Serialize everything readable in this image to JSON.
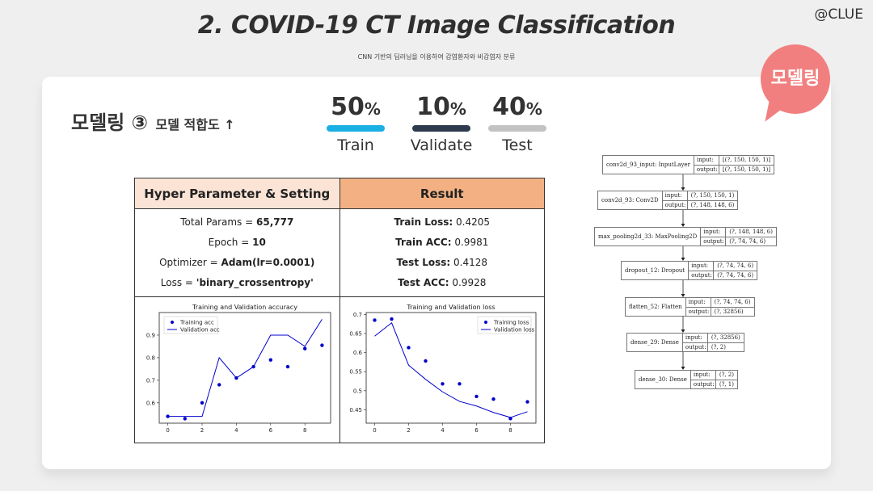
{
  "header": {
    "title": "2. COVID-19 CT Image Classification",
    "subtitle": "CNN 기반의 딥러닝을 이용하여 감염환자와 비감염자 분류",
    "brand": "@CLUE"
  },
  "badge": {
    "label": "모델링",
    "color": "#f27f7f"
  },
  "section": {
    "title": "모델링 ③",
    "subtitle": "모델 적합도 ↑"
  },
  "split": [
    {
      "pct": "50",
      "unit": "%",
      "label": "Train",
      "color": "#1ab0e3"
    },
    {
      "pct": "10",
      "unit": "%",
      "label": "Validate",
      "color": "#2e3a4e"
    },
    {
      "pct": "40",
      "unit": "%",
      "label": "Test",
      "color": "#c3c3c3"
    }
  ],
  "table": {
    "headers": [
      "Hyper Parameter & Setting",
      "Result"
    ],
    "left": [
      {
        "key": "Total Params = ",
        "val": "65,777"
      },
      {
        "key": "Epoch = ",
        "val": "10"
      },
      {
        "key": "Optimizer = ",
        "val": "Adam(lr=0.0001)"
      },
      {
        "key": "Loss = ",
        "val": "'binary_crossentropy'"
      }
    ],
    "right": [
      {
        "key": "Train Loss:",
        "val": " 0.4205"
      },
      {
        "key": "Train ACC:",
        "val": " 0.9981"
      },
      {
        "key": "Test Loss:",
        "val": " 0.4128"
      },
      {
        "key": "Test ACC:",
        "val": " 0.9928"
      }
    ]
  },
  "chart_data": [
    {
      "type": "line",
      "title": "Training and Validation accuracy",
      "x": [
        0,
        1,
        2,
        3,
        4,
        5,
        6,
        7,
        8,
        9
      ],
      "xticks": [
        0,
        2,
        4,
        6,
        8
      ],
      "yticks": [
        0.6,
        0.7,
        0.8,
        0.9
      ],
      "ylim": [
        0.51,
        1.0
      ],
      "xlim": [
        -0.5,
        9.5
      ],
      "legend": "top-left",
      "series": [
        {
          "name": "Training acc",
          "style": "dots",
          "color": "#0000cc",
          "values": [
            0.54,
            0.53,
            0.6,
            0.68,
            0.71,
            0.76,
            0.79,
            0.76,
            0.84,
            0.855
          ]
        },
        {
          "name": "Validation acc",
          "style": "line",
          "color": "#0000cc",
          "values": [
            0.54,
            0.54,
            0.54,
            0.8,
            0.71,
            0.76,
            0.9,
            0.9,
            0.85,
            0.97
          ]
        }
      ]
    },
    {
      "type": "line",
      "title": "Training and Validation loss",
      "x": [
        0,
        1,
        2,
        3,
        4,
        5,
        6,
        7,
        8,
        9
      ],
      "xticks": [
        0,
        2,
        4,
        6,
        8
      ],
      "yticks": [
        0.45,
        0.5,
        0.55,
        0.6,
        0.65,
        0.7
      ],
      "ylim": [
        0.415,
        0.705
      ],
      "xlim": [
        -0.5,
        9.5
      ],
      "legend": "top-right",
      "series": [
        {
          "name": "Training loss",
          "style": "dots",
          "color": "#0000cc",
          "values": [
            0.685,
            0.688,
            0.613,
            0.578,
            0.518,
            0.518,
            0.485,
            0.478,
            0.427,
            0.471
          ]
        },
        {
          "name": "Validation loss",
          "style": "line",
          "color": "#0000cc",
          "values": [
            0.643,
            0.678,
            0.567,
            0.53,
            0.497,
            0.472,
            0.46,
            0.443,
            0.43,
            0.445
          ]
        }
      ]
    }
  ],
  "model": {
    "in_label": "input:",
    "out_label": "output:",
    "layers": [
      {
        "name": "conv2d_93_input: InputLayer",
        "input": "[(?, 150, 150, 1)]",
        "output": "[(?, 150, 150, 1)]"
      },
      {
        "name": "conv2d_93: Conv2D",
        "input": "(?, 150, 150, 1)",
        "output": "(?, 148, 148, 6)"
      },
      {
        "name": "max_pooling2d_33: MaxPooling2D",
        "input": "(?, 148, 148, 6)",
        "output": "(?, 74, 74, 6)"
      },
      {
        "name": "dropout_12: Dropout",
        "input": "(?, 74, 74, 6)",
        "output": "(?, 74, 74, 6)"
      },
      {
        "name": "flatten_52: Flatten",
        "input": "(?, 74, 74, 6)",
        "output": "(?, 32856)"
      },
      {
        "name": "dense_29: Dense",
        "input": "(?, 32856)",
        "output": "(?, 2)"
      },
      {
        "name": "dense_30: Dense",
        "input": "(?, 2)",
        "output": "(?, 1)"
      }
    ]
  }
}
